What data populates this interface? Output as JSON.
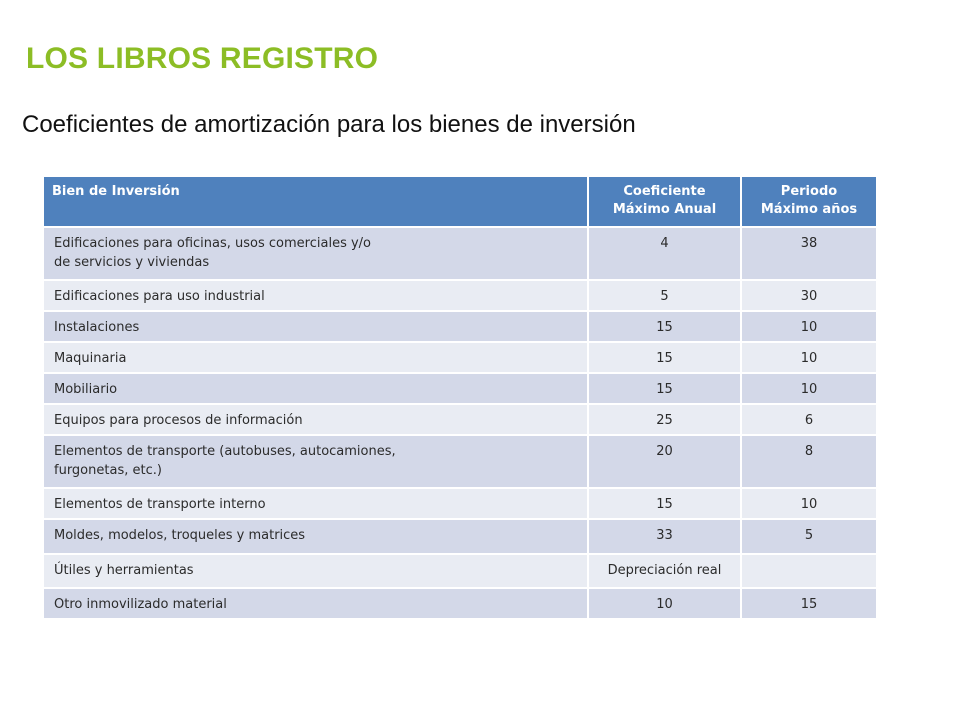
{
  "slide": {
    "title": "LOS LIBROS REGISTRO",
    "subtitle": "Coeficientes de amortización para los bienes de inversión"
  },
  "table": {
    "headers": {
      "bien": "Bien de Inversión",
      "coef_line1": "Coeficiente",
      "coef_line2": "Máximo Anual",
      "periodo_line1": "Periodo",
      "periodo_line2": "Máximo años"
    },
    "rows": [
      {
        "bien_line1": "Edificaciones para oficinas, usos comerciales y/o",
        "bien_line2": "de servicios y viviendas",
        "coeficiente": "4",
        "periodo": "38"
      },
      {
        "bien_line1": "Edificaciones para uso industrial",
        "bien_line2": "",
        "coeficiente": "5",
        "periodo": "30"
      },
      {
        "bien_line1": "Instalaciones",
        "bien_line2": "",
        "coeficiente": "15",
        "periodo": "10"
      },
      {
        "bien_line1": "Maquinaria",
        "bien_line2": "",
        "coeficiente": "15",
        "periodo": "10"
      },
      {
        "bien_line1": "Mobiliario",
        "bien_line2": "",
        "coeficiente": "15",
        "periodo": "10"
      },
      {
        "bien_line1": "Equipos para procesos de información",
        "bien_line2": "",
        "coeficiente": "25",
        "periodo": "6"
      },
      {
        "bien_line1": "Elementos de transporte (autobuses, autocamiones,",
        "bien_line2": "furgonetas, etc.)",
        "coeficiente": "20",
        "periodo": "8"
      },
      {
        "bien_line1": "Elementos de transporte interno",
        "bien_line2": "",
        "coeficiente": "15",
        "periodo": "10"
      },
      {
        "bien_line1": "Moldes, modelos, troqueles y matrices",
        "bien_line2": "",
        "coeficiente": "33",
        "periodo": "5"
      },
      {
        "bien_line1": "Útiles y herramientas",
        "bien_line2": "",
        "coeficiente": "Depreciación real",
        "periodo": ""
      },
      {
        "bien_line1": "Otro inmovilizado material",
        "bien_line2": "",
        "coeficiente": "10",
        "periodo": "15"
      }
    ]
  }
}
